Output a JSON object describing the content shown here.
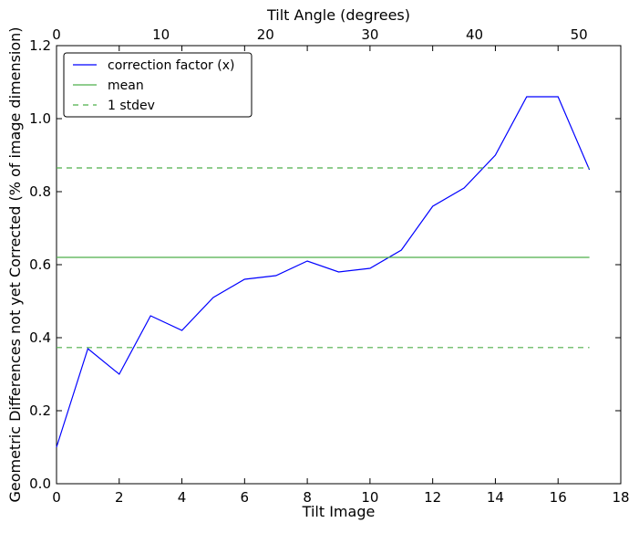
{
  "chart_data": {
    "type": "line",
    "xlabel": "Tilt Image",
    "ylabel": "Geometric Differences not yet Corrected (% of image dimension)",
    "top_xlabel": "Tilt Angle (degrees)",
    "xlim": [
      0,
      18
    ],
    "ylim": [
      0,
      1.2
    ],
    "top_xlim": [
      0,
      54
    ],
    "x_ticks": [
      "0",
      "2",
      "4",
      "6",
      "8",
      "10",
      "12",
      "14",
      "16",
      "18"
    ],
    "y_ticks": [
      "0.0",
      "0.2",
      "0.4",
      "0.6",
      "0.8",
      "1.0",
      "1.2"
    ],
    "top_x_ticks": [
      "0",
      "10",
      "20",
      "30",
      "40",
      "50"
    ],
    "grid": false,
    "legend_position": "top-left",
    "series": [
      {
        "name": "correction factor (x)",
        "color": "#0000ff",
        "style": "solid",
        "x": [
          0,
          1,
          2,
          3,
          4,
          5,
          6,
          7,
          8,
          9,
          10,
          11,
          12,
          13,
          14,
          15,
          16,
          17
        ],
        "y": [
          0.1,
          0.37,
          0.3,
          0.46,
          0.42,
          0.51,
          0.56,
          0.57,
          0.61,
          0.58,
          0.59,
          0.64,
          0.76,
          0.81,
          0.9,
          1.06,
          1.06,
          0.86
        ]
      },
      {
        "name": "mean",
        "color": "#4daf4a",
        "style": "solid",
        "x": [
          0,
          17
        ],
        "y": [
          0.62,
          0.62
        ]
      },
      {
        "name": "1 stdev",
        "color": "#4daf4a",
        "style": "dashed",
        "x": [
          0,
          17
        ],
        "y": [
          0.865,
          0.865
        ]
      },
      {
        "name": "",
        "color": "#4daf4a",
        "style": "dashed",
        "x": [
          0,
          17
        ],
        "y": [
          0.373,
          0.373
        ]
      }
    ]
  }
}
